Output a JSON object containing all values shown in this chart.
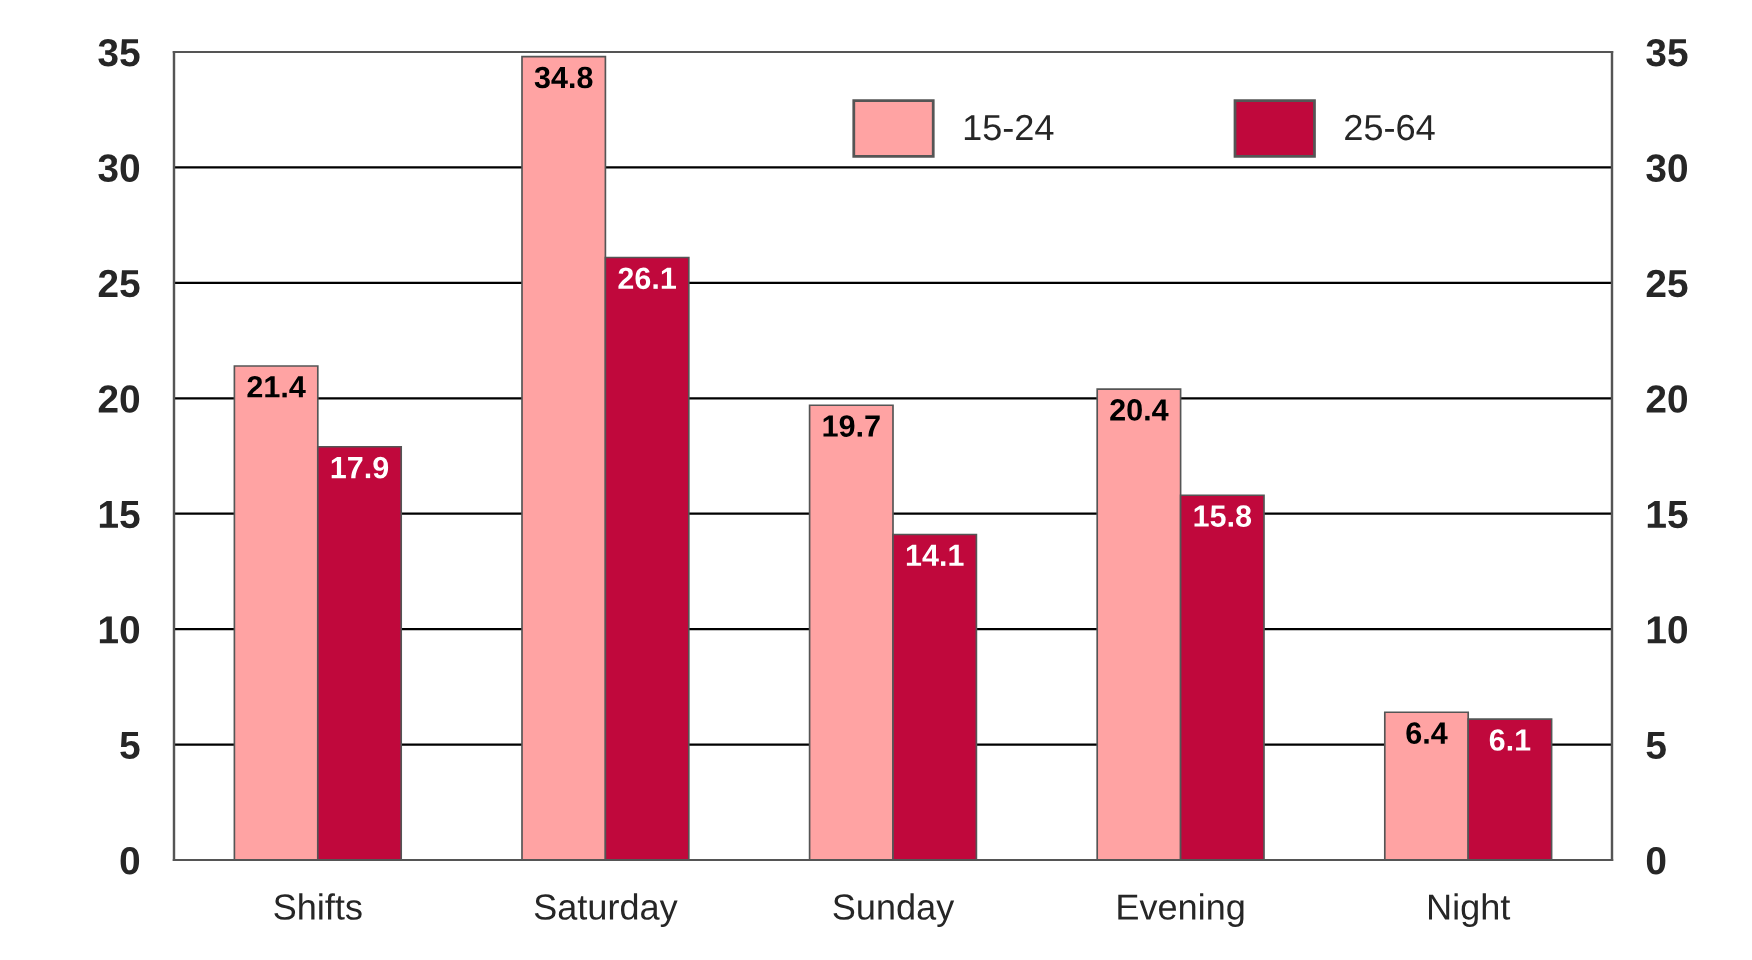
{
  "chart_data": {
    "type": "bar",
    "categories": [
      "Shifts",
      "Saturday",
      "Sunday",
      "Evening",
      "Night"
    ],
    "series": [
      {
        "name": "15-24",
        "color": "#ffa3a3",
        "values": [
          21.4,
          34.8,
          19.7,
          20.4,
          6.4
        ]
      },
      {
        "name": "25-64",
        "color": "#c0083c",
        "values": [
          17.9,
          26.1,
          14.1,
          15.8,
          6.1
        ]
      }
    ],
    "ylim": [
      0,
      35
    ],
    "yticks": [
      0,
      5,
      10,
      15,
      20,
      25,
      30,
      35
    ],
    "y2lim": [
      0,
      35
    ],
    "y2ticks": [
      0,
      5,
      10,
      15,
      20,
      25,
      30,
      35
    ],
    "grid": "y",
    "legend": "top right",
    "data_labels": true
  }
}
